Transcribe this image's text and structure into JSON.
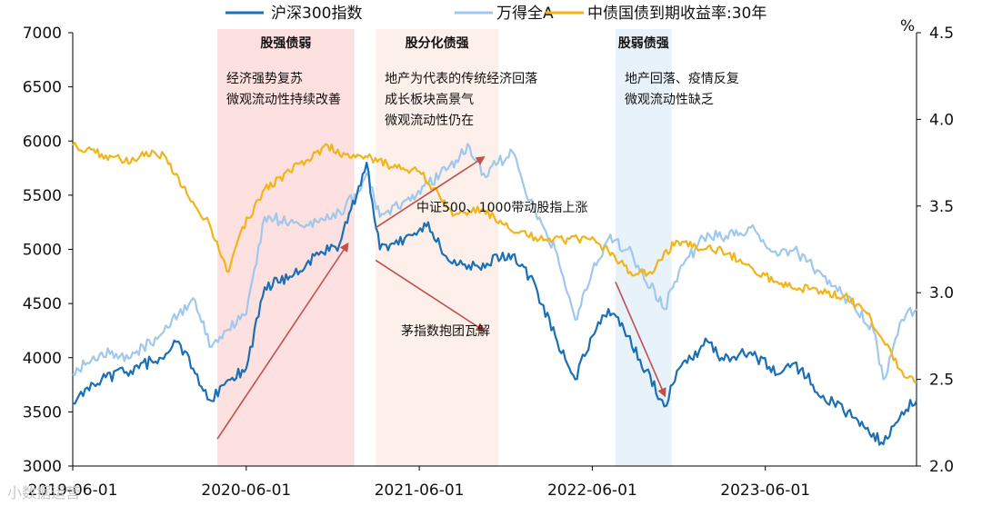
{
  "chart_data": {
    "type": "line",
    "title": "",
    "legend_position": "top",
    "series": [
      {
        "name": "沪深300指数",
        "axis": "left",
        "color": "#1a6fb5",
        "points": [
          [
            "2019-06-01",
            3580
          ],
          [
            "2019-08-01",
            3800
          ],
          [
            "2019-10-01",
            3880
          ],
          [
            "2019-12-01",
            4000
          ],
          [
            "2020-01-10",
            4150
          ],
          [
            "2020-02-10",
            3900
          ],
          [
            "2020-03-20",
            3600
          ],
          [
            "2020-04-20",
            3780
          ],
          [
            "2020-06-01",
            3900
          ],
          [
            "2020-07-10",
            4650
          ],
          [
            "2020-09-01",
            4750
          ],
          [
            "2020-11-01",
            4950
          ],
          [
            "2020-12-15",
            5050
          ],
          [
            "2021-01-20",
            5500
          ],
          [
            "2021-02-10",
            5800
          ],
          [
            "2021-03-10",
            5000
          ],
          [
            "2021-05-01",
            5100
          ],
          [
            "2021-06-20",
            5250
          ],
          [
            "2021-08-01",
            4900
          ],
          [
            "2021-10-01",
            4850
          ],
          [
            "2021-12-15",
            4950
          ],
          [
            "2022-01-20",
            4750
          ],
          [
            "2022-03-15",
            4200
          ],
          [
            "2022-04-26",
            3800
          ],
          [
            "2022-06-01",
            4200
          ],
          [
            "2022-07-05",
            4450
          ],
          [
            "2022-08-15",
            4200
          ],
          [
            "2022-10-31",
            3550
          ],
          [
            "2022-12-01",
            3900
          ],
          [
            "2023-01-30",
            4150
          ],
          [
            "2023-03-01",
            4000
          ],
          [
            "2023-05-01",
            4050
          ],
          [
            "2023-07-01",
            3850
          ],
          [
            "2023-08-01",
            3950
          ],
          [
            "2023-10-01",
            3650
          ],
          [
            "2023-12-01",
            3450
          ],
          [
            "2024-01-15",
            3300
          ],
          [
            "2024-02-05",
            3200
          ],
          [
            "2024-03-15",
            3500
          ],
          [
            "2024-04-15",
            3600
          ]
        ]
      },
      {
        "name": "万得全A",
        "axis": "left",
        "color": "#9fc8ec",
        "points": [
          [
            "2019-06-01",
            3850
          ],
          [
            "2019-08-01",
            4050
          ],
          [
            "2019-10-01",
            4000
          ],
          [
            "2019-12-01",
            4200
          ],
          [
            "2020-01-10",
            4400
          ],
          [
            "2020-02-10",
            4550
          ],
          [
            "2020-03-20",
            4100
          ],
          [
            "2020-04-20",
            4250
          ],
          [
            "2020-06-01",
            4400
          ],
          [
            "2020-07-10",
            5300
          ],
          [
            "2020-09-01",
            5250
          ],
          [
            "2020-11-01",
            5250
          ],
          [
            "2020-12-15",
            5350
          ],
          [
            "2021-01-20",
            5500
          ],
          [
            "2021-02-10",
            5700
          ],
          [
            "2021-03-10",
            5300
          ],
          [
            "2021-05-01",
            5450
          ],
          [
            "2021-06-20",
            5600
          ],
          [
            "2021-08-01",
            5750
          ],
          [
            "2021-09-15",
            5950
          ],
          [
            "2021-10-15",
            5700
          ],
          [
            "2021-12-15",
            5900
          ],
          [
            "2022-01-20",
            5450
          ],
          [
            "2022-03-15",
            5000
          ],
          [
            "2022-04-26",
            4350
          ],
          [
            "2022-06-01",
            4800
          ],
          [
            "2022-07-05",
            5100
          ],
          [
            "2022-08-15",
            5000
          ],
          [
            "2022-10-31",
            4450
          ],
          [
            "2022-12-01",
            4800
          ],
          [
            "2023-01-30",
            5150
          ],
          [
            "2023-03-01",
            5100
          ],
          [
            "2023-05-01",
            5200
          ],
          [
            "2023-07-01",
            4950
          ],
          [
            "2023-08-01",
            5000
          ],
          [
            "2023-10-01",
            4750
          ],
          [
            "2023-12-01",
            4500
          ],
          [
            "2024-01-15",
            4250
          ],
          [
            "2024-02-05",
            3800
          ],
          [
            "2024-03-15",
            4350
          ],
          [
            "2024-04-15",
            4450
          ]
        ]
      },
      {
        "name": "中债国债到期收益率:30年",
        "axis": "right",
        "color": "#f2b418",
        "points": [
          [
            "2019-06-01",
            3.85
          ],
          [
            "2019-08-01",
            3.8
          ],
          [
            "2019-10-01",
            3.75
          ],
          [
            "2019-11-15",
            3.82
          ],
          [
            "2019-12-15",
            3.78
          ],
          [
            "2020-02-01",
            3.55
          ],
          [
            "2020-03-15",
            3.4
          ],
          [
            "2020-04-25",
            3.12
          ],
          [
            "2020-05-20",
            3.35
          ],
          [
            "2020-07-10",
            3.6
          ],
          [
            "2020-09-01",
            3.7
          ],
          [
            "2020-11-20",
            3.85
          ],
          [
            "2021-01-05",
            3.78
          ],
          [
            "2021-02-20",
            3.78
          ],
          [
            "2021-04-15",
            3.72
          ],
          [
            "2021-06-01",
            3.7
          ],
          [
            "2021-07-15",
            3.55
          ],
          [
            "2021-08-15",
            3.45
          ],
          [
            "2021-10-15",
            3.48
          ],
          [
            "2021-12-15",
            3.35
          ],
          [
            "2022-02-01",
            3.32
          ],
          [
            "2022-04-01",
            3.3
          ],
          [
            "2022-06-01",
            3.32
          ],
          [
            "2022-08-20",
            3.12
          ],
          [
            "2022-10-01",
            3.12
          ],
          [
            "2022-11-25",
            3.3
          ],
          [
            "2023-01-15",
            3.25
          ],
          [
            "2023-03-01",
            3.25
          ],
          [
            "2023-05-01",
            3.15
          ],
          [
            "2023-07-01",
            3.05
          ],
          [
            "2023-09-01",
            3.02
          ],
          [
            "2023-11-15",
            2.98
          ],
          [
            "2024-01-01",
            2.88
          ],
          [
            "2024-02-05",
            2.72
          ],
          [
            "2024-03-15",
            2.55
          ],
          [
            "2024-04-15",
            2.48
          ]
        ]
      }
    ],
    "y_left": {
      "ylim": [
        3000,
        7000
      ],
      "ticks": [
        3000,
        3500,
        4000,
        4500,
        5000,
        5500,
        6000,
        6500,
        7000
      ]
    },
    "y_right": {
      "ylim": [
        2.0,
        4.5
      ],
      "ticks": [
        "2.0",
        "2.5",
        "3.0",
        "3.5",
        "4.0",
        "4.5"
      ],
      "unit": "%"
    },
    "x": {
      "range": [
        "2019-06-01",
        "2024-04-15"
      ],
      "ticks": [
        "2019-06-01",
        "2020-06-01",
        "2021-06-01",
        "2022-06-01",
        "2023-06-01"
      ]
    },
    "regions": [
      {
        "start": "2020-04-01",
        "end": "2021-01-15",
        "color": "#fde0e0",
        "title": "股强债弱",
        "notes": [
          "经济强势复苏",
          "微观流动性持续改善"
        ]
      },
      {
        "start": "2021-03-01",
        "end": "2021-11-15",
        "color": "#fdf0ea",
        "title": "股分化债强",
        "notes": [
          "地产为代表的传统经济回落",
          "成长板块高景气",
          "微观流动性仍在"
        ]
      },
      {
        "start": "2022-07-20",
        "end": "2022-11-15",
        "color": "#e8f2fa",
        "title": "股弱债强",
        "notes": [
          "地产回落、疫情反复",
          "微观流动性缺乏"
        ]
      }
    ],
    "annotations": [
      {
        "text": "中证500、1000带动股指上涨",
        "from": [
          "2021-03-01",
          5200
        ],
        "to": [
          "2021-10-15",
          5850
        ]
      },
      {
        "text": "茅指数抱团瓦解",
        "from": [
          "2021-03-01",
          4900
        ],
        "to": [
          "2021-10-15",
          4250
        ]
      },
      {
        "text": "",
        "from": [
          "2020-04-01",
          3250
        ],
        "to": [
          "2021-01-01",
          5050
        ]
      },
      {
        "text": "",
        "from": [
          "2022-07-20",
          4700
        ],
        "to": [
          "2022-11-01",
          3650
        ]
      }
    ],
    "watermark": "小数据运营"
  }
}
